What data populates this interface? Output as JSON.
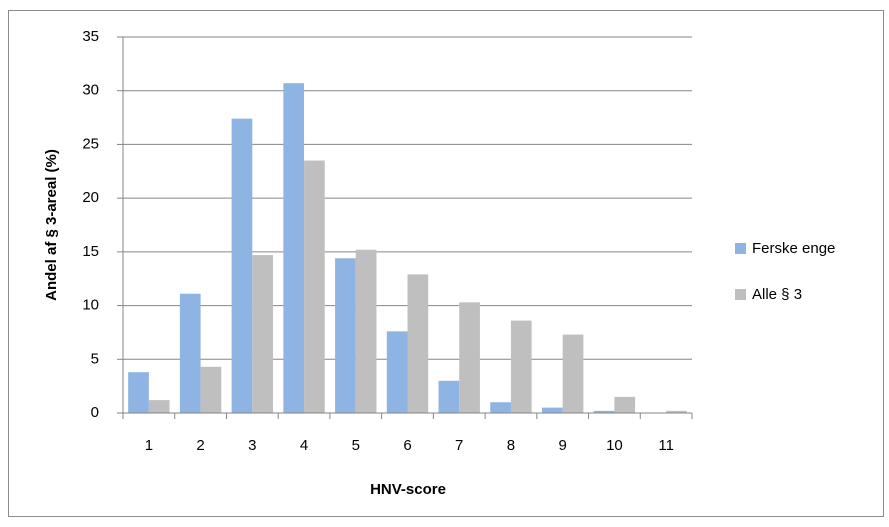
{
  "chart_data": {
    "type": "bar",
    "x_label": "HNV-score",
    "y_label": "Andel af § 3-areal (%)",
    "categories": [
      "1",
      "2",
      "3",
      "4",
      "5",
      "6",
      "7",
      "8",
      "9",
      "10",
      "11"
    ],
    "series": [
      {
        "name": "Ferske enge",
        "color": "#8db4e2",
        "values": [
          3.8,
          11.1,
          27.4,
          30.7,
          14.4,
          7.6,
          3.0,
          1.0,
          0.5,
          0.2,
          0
        ]
      },
      {
        "name": "Alle § 3",
        "color": "#bfbfbf",
        "values": [
          1.2,
          4.3,
          14.7,
          23.5,
          15.2,
          12.9,
          10.3,
          8.6,
          7.3,
          1.5,
          0.2
        ]
      }
    ],
    "ylim": [
      0,
      35
    ],
    "yticks": [
      0,
      5,
      10,
      15,
      20,
      25,
      30,
      35
    ],
    "grid": true,
    "legend": "right"
  }
}
